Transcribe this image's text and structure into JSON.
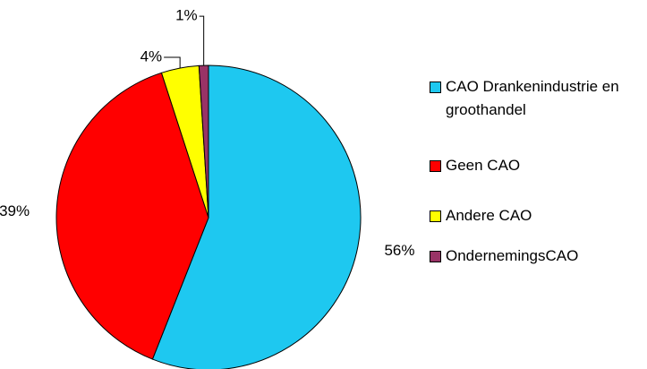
{
  "chart_data": {
    "type": "pie",
    "categories": [
      "CAO Drankenindustrie en groothandel",
      "Geen CAO",
      "Andere CAO",
      "OndernemingsCAO"
    ],
    "values": [
      56,
      39,
      4,
      1
    ],
    "value_labels": [
      "56%",
      "39%",
      "4%",
      "1%"
    ],
    "colors": [
      "#1ec8f0",
      "#ff0000",
      "#ffff00",
      "#993366"
    ],
    "legend": "right"
  }
}
